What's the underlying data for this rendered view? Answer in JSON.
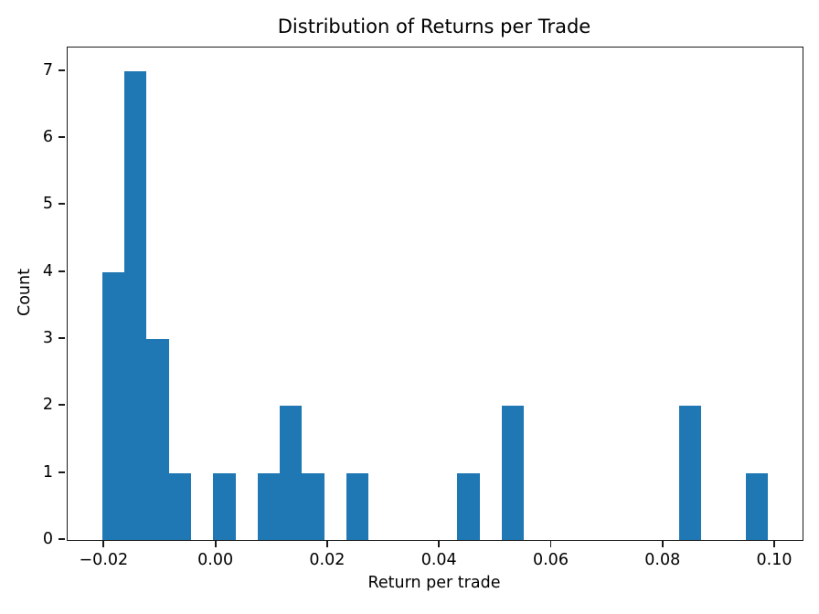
{
  "chart_data": {
    "type": "bar",
    "subtype": "histogram",
    "title": "Distribution of Returns per Trade",
    "xlabel": "Return per trade",
    "ylabel": "Count",
    "bar_color": "#1f77b4",
    "axis_color": "#1a1a1a",
    "grid": false,
    "legend": false,
    "bins": {
      "start": -0.0204,
      "bin_width": 0.00397,
      "num_bins": 30
    },
    "counts": [
      4,
      7,
      3,
      1,
      0,
      1,
      0,
      1,
      2,
      1,
      0,
      1,
      0,
      0,
      0,
      0,
      1,
      0,
      2,
      0,
      0,
      0,
      0,
      0,
      0,
      0,
      2,
      0,
      0,
      1
    ],
    "xlim": [
      -0.0266,
      0.1049
    ],
    "ylim": [
      0,
      7.35
    ],
    "x_ticks": [
      {
        "value": -0.02,
        "label": "−0.02"
      },
      {
        "value": 0.0,
        "label": "0.00"
      },
      {
        "value": 0.02,
        "label": "0.02"
      },
      {
        "value": 0.04,
        "label": "0.04"
      },
      {
        "value": 0.06,
        "label": "0.06"
      },
      {
        "value": 0.08,
        "label": "0.08"
      },
      {
        "value": 0.1,
        "label": "0.10"
      }
    ],
    "y_ticks": [
      {
        "value": 0,
        "label": "0"
      },
      {
        "value": 1,
        "label": "1"
      },
      {
        "value": 2,
        "label": "2"
      },
      {
        "value": 3,
        "label": "3"
      },
      {
        "value": 4,
        "label": "4"
      },
      {
        "value": 5,
        "label": "5"
      },
      {
        "value": 6,
        "label": "6"
      },
      {
        "value": 7,
        "label": "7"
      }
    ]
  }
}
